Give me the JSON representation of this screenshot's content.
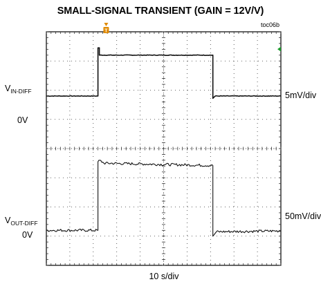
{
  "chart_data": {
    "type": "line",
    "title": "SMALL-SIGNAL TRANSIENT (GAIN = 12V/V)",
    "figure_id": "toc06b",
    "time_scale": "10\u001f s/div",
    "x": {
      "unit": "divisions",
      "range": [
        0,
        10
      ],
      "divisions": 10
    },
    "y": {
      "unit": "divisions",
      "range": [
        0,
        8
      ],
      "divisions": 8
    },
    "grid": true,
    "trigger_marker": "T",
    "series": [
      {
        "name": "VIN-DIFF",
        "label_main": "V",
        "label_sub": "IN-DIFF",
        "zero_label": "0V",
        "scale": "5mV/div",
        "zero_level_div": 5.8,
        "points": [
          [
            0,
            5.8
          ],
          [
            2.2,
            5.8
          ],
          [
            2.2,
            7.45
          ],
          [
            2.26,
            7.45
          ],
          [
            2.26,
            7.2
          ],
          [
            7.1,
            7.2
          ],
          [
            7.1,
            5.72
          ],
          [
            7.2,
            5.8
          ],
          [
            10,
            5.8
          ]
        ],
        "noise": 0.01
      },
      {
        "name": "VOUT-DIFF",
        "label_main": "V",
        "label_sub": "OUT-DIFF",
        "zero_label": "0V",
        "scale": "50mV/div",
        "zero_level_div": 1.2,
        "points": [
          [
            0,
            1.2
          ],
          [
            2.2,
            1.2
          ],
          [
            2.2,
            3.55
          ],
          [
            2.28,
            3.6
          ],
          [
            2.45,
            3.5
          ],
          [
            7.1,
            3.42
          ],
          [
            7.1,
            1.0
          ],
          [
            7.25,
            1.15
          ],
          [
            10,
            1.18
          ]
        ],
        "noise": 0.045
      }
    ]
  },
  "colors": {
    "trace": "#111111",
    "grid": "#333333",
    "marker": "#e08a00",
    "ground": "#1a9a2a"
  }
}
